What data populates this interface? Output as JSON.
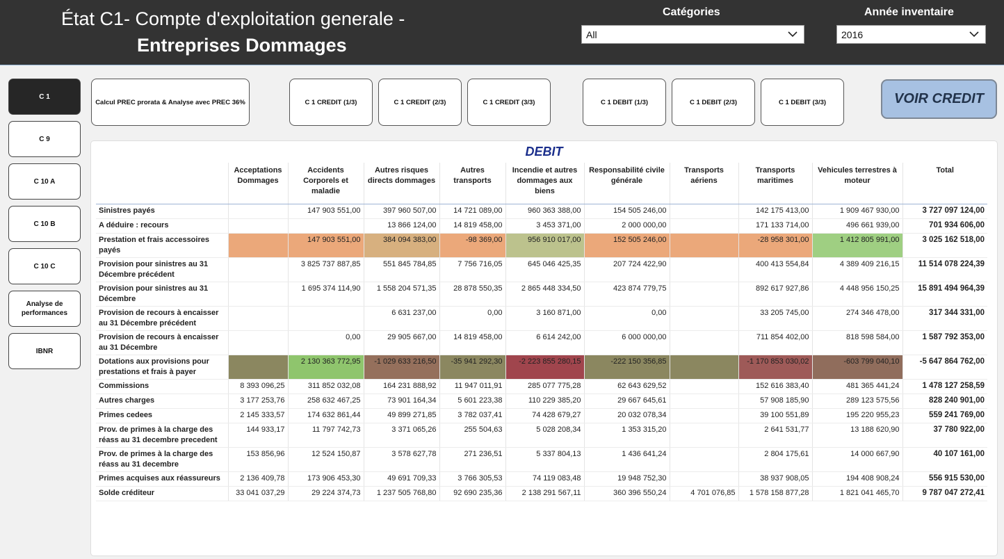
{
  "header": {
    "title_line1": "État C1- Compte d'exploitation generale -",
    "title_line2": "Entreprises Dommages",
    "categories_label": "Catégories",
    "categories_value": "All",
    "annee_label": "Année inventaire",
    "annee_value": "2016"
  },
  "nav": {
    "items": [
      "C 1",
      "C 9",
      "C 10 A",
      "C 10 B",
      "C 10 C",
      "Analyse de performances",
      "IBNR"
    ]
  },
  "top_buttons": {
    "calcul": "Calcul PREC prorata & Analyse avec PREC 36%",
    "credit1": "C 1 CREDIT (1/3)",
    "credit2": "C 1 CREDIT (2/3)",
    "credit3": "C 1 CREDIT (3/3)",
    "debit1": "C 1 DEBIT (1/3)",
    "debit2": "C 1 DEBIT (2/3)",
    "debit3": "C 1 DEBIT (3/3)",
    "voir": "VOIR CREDIT"
  },
  "table": {
    "title": "DEBIT",
    "columns": [
      "",
      "Acceptations Dommages",
      "Accidents Corporels et maladie",
      "Autres risques directs dommages",
      "Autres transports",
      "Incendie et autres dommages aux biens",
      "Responsabilité civile générale",
      "Transports aériens",
      "Transports maritimes",
      "Vehicules terrestres à moteur",
      "Total"
    ],
    "rows": [
      {
        "label": "Sinistres payés",
        "values": [
          "",
          "147 903 551,00",
          "397 960 507,00",
          "14 721 089,00",
          "960 363 388,00",
          "154 505 246,00",
          "",
          "142 175 413,00",
          "1 909 467 930,00",
          "3 727 097 124,00"
        ]
      },
      {
        "label": "A déduire : recours",
        "values": [
          "",
          "",
          "13 866 124,00",
          "14 819 458,00",
          "3 453 371,00",
          "2 000 000,00",
          "",
          "171 133 714,00",
          "496 661 939,00",
          "701 934 606,00"
        ]
      },
      {
        "label": "Prestation et frais accessoires payés",
        "values": [
          "",
          "147 903 551,00",
          "384 094 383,00",
          "-98 369,00",
          "956 910 017,00",
          "152 505 246,00",
          "",
          "-28 958 301,00",
          "1 412 805 991,00",
          "3 025 162 518,00"
        ]
      },
      {
        "label": "Provision pour sinistres au 31 Décembre précédent",
        "values": [
          "",
          "3 825 737 887,85",
          "551 845 784,85",
          "7 756 716,05",
          "645 046 425,35",
          "207 724 422,90",
          "",
          "400 413 554,84",
          "4 389 409 216,15",
          "11 514 078 224,39"
        ]
      },
      {
        "label": "Provision pour sinistres au 31 Décembre",
        "values": [
          "",
          "1 695 374 114,90",
          "1 558 204 571,35",
          "28 878 550,35",
          "2 865 448 334,50",
          "423 874 779,75",
          "",
          "892 617 927,86",
          "4 448 956 150,25",
          "15 891 494 964,39"
        ]
      },
      {
        "label": "Provision de recours à encaisser au 31 Décembre précédent",
        "values": [
          "",
          "",
          "6 631 237,00",
          "0,00",
          "3 160 871,00",
          "0,00",
          "",
          "33 205 745,00",
          "274 346 478,00",
          "317 344 331,00"
        ]
      },
      {
        "label": "Provision de recours à encaisser au 31 Décembre",
        "values": [
          "",
          "0,00",
          "29 905 667,00",
          "14 819 458,00",
          "6 614 242,00",
          "6 000 000,00",
          "",
          "711 854 402,00",
          "818 598 584,00",
          "1 587 792 353,00"
        ]
      },
      {
        "label": "Dotations aux provisions pour prestations et frais à payer",
        "values": [
          "",
          "2 130 363 772,95",
          "-1 029 633 216,50",
          "-35 941 292,30",
          "-2 223 855 280,15",
          "-222 150 356,85",
          "",
          "-1 170 853 030,02",
          "-603 799 040,10",
          "-5 647 864 762,00"
        ]
      },
      {
        "label": "Commissions",
        "values": [
          "8 393 096,25",
          "311 852 032,08",
          "164 231 888,92",
          "11 947 011,91",
          "285 077 775,28",
          "62 643 629,52",
          "",
          "152 616 383,40",
          "481 365 441,24",
          "1 478 127 258,59"
        ]
      },
      {
        "label": "Autres charges",
        "values": [
          "3 177 253,76",
          "258 632 467,25",
          "73 901 164,34",
          "5 601 223,38",
          "110 229 385,20",
          "29 667 645,61",
          "",
          "57 908 185,90",
          "289 123 575,56",
          "828 240 901,00"
        ]
      },
      {
        "label": "Primes cedees",
        "values": [
          "2 145 333,57",
          "174 632 861,44",
          "49 899 271,85",
          "3 782 037,41",
          "74 428 679,27",
          "20 032 078,34",
          "",
          "39 100 551,89",
          "195 220 955,23",
          "559 241 769,00"
        ]
      },
      {
        "label": "Prov. de primes à la charge des réass au 31 decembre precedent",
        "values": [
          "144 933,17",
          "11 797 742,73",
          "3 371 065,26",
          "255 504,63",
          "5 028 208,34",
          "1 353 315,20",
          "",
          "2 641 531,77",
          "13 188 620,90",
          "37 780 922,00"
        ]
      },
      {
        "label": "Prov. de primes à la charge des réass au 31 decembre",
        "values": [
          "153 856,96",
          "12 524 150,87",
          "3 578 627,78",
          "271 236,51",
          "5 337 804,13",
          "1 436 641,24",
          "",
          "2 804 175,61",
          "14 000 667,90",
          "40 107 161,00"
        ]
      },
      {
        "label": "Primes acquises aux réassureurs",
        "values": [
          "2 136 409,78",
          "173 906 453,30",
          "49 691 709,33",
          "3 766 305,53",
          "74 119 083,48",
          "19 948 752,30",
          "",
          "38 937 908,05",
          "194 408 908,24",
          "556 915 530,00"
        ]
      },
      {
        "label": "Solde créditeur",
        "values": [
          "33 041 037,29",
          "29 224 374,73",
          "1 237 505 768,80",
          "92 690 235,36",
          "2 138 291 567,11",
          "360 396 550,24",
          "4 701 076,85",
          "1 578 158 877,28",
          "1 821 041 465,70",
          "9 787 047 272,41"
        ]
      }
    ],
    "row_colors": {
      "2": [
        "#eba87a",
        "#eba87a",
        "#d7b07f",
        "#eba87a",
        "#bcc28d",
        "#eba87a",
        "#eba87a",
        "#eba87a",
        "#9fcf82",
        ""
      ],
      "7": [
        "#8b8760",
        "#8fc56d",
        "#95705c",
        "#8b8760",
        "#a0454d",
        "#8b8760",
        "#8b8760",
        "#9e5a58",
        "#906d5c",
        ""
      ]
    }
  }
}
